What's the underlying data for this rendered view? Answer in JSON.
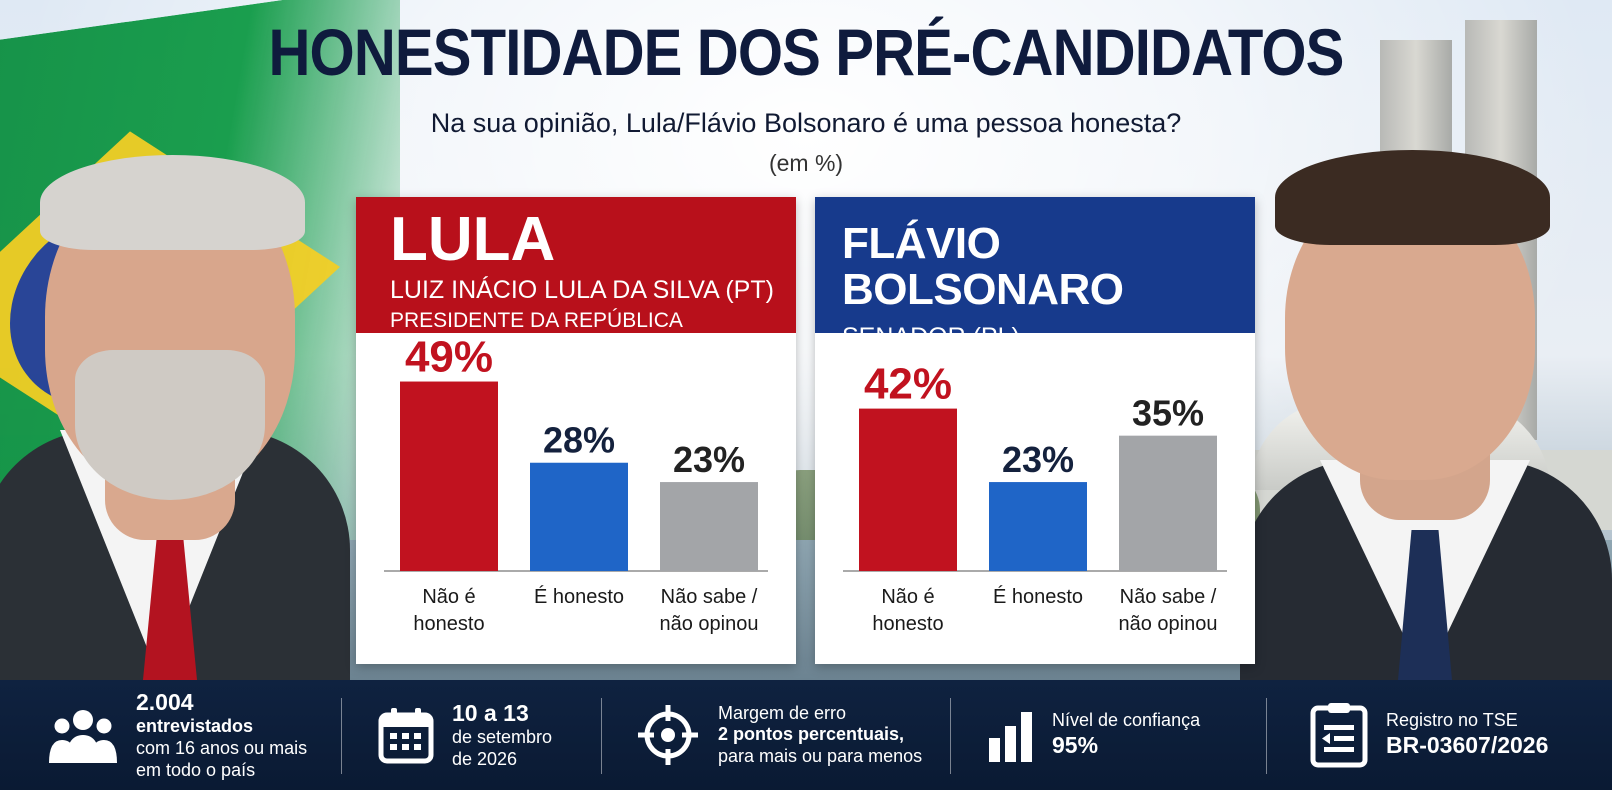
{
  "header": {
    "title": "HONESTIDADE DOS PRÉ-CANDIDATOS",
    "subtitle": "Na sua opinião, Lula/Flávio Bolsonaro é uma pessoa honesta?",
    "unit": "(em %)"
  },
  "candidates": [
    {
      "name": "LULA",
      "line1": "LUIZ INÁCIO LULA DA SILVA (PT)",
      "line2": "PRESIDENTE DA REPÚBLICA",
      "color": "#b8101b"
    },
    {
      "name": "FLÁVIO BOLSONARO",
      "line1": "SENADOR (PL)",
      "line2": "",
      "color": "#173a8c"
    }
  ],
  "chart_data": [
    {
      "type": "bar",
      "categories": [
        "Não é honesto",
        "É honesto",
        "Não sabe / não opinou"
      ],
      "category_lines": [
        [
          "Não é",
          "honesto"
        ],
        [
          "É honesto"
        ],
        [
          "Não sabe /",
          "não opinou"
        ]
      ],
      "values": [
        49,
        28,
        23
      ],
      "labels": [
        "49%",
        "28%",
        "23%"
      ],
      "colors": [
        "#c1121f",
        "#1f65c7",
        "#a3a5a8"
      ],
      "label_colors": [
        "#c1121f",
        "#14213d",
        "#222222"
      ],
      "ylim": [
        0,
        60
      ]
    },
    {
      "type": "bar",
      "categories": [
        "Não é honesto",
        "É honesto",
        "Não sabe / não opinou"
      ],
      "category_lines": [
        [
          "Não é",
          "honesto"
        ],
        [
          "É honesto"
        ],
        [
          "Não sabe /",
          "não opinou"
        ]
      ],
      "values": [
        42,
        23,
        35
      ],
      "labels": [
        "42%",
        "23%",
        "35%"
      ],
      "colors": [
        "#c1121f",
        "#1f65c7",
        "#a3a5a8"
      ],
      "label_colors": [
        "#c1121f",
        "#14213d",
        "#222222"
      ],
      "ylim": [
        0,
        60
      ]
    }
  ],
  "footer": {
    "sample": {
      "big": "2.004",
      "bold": "entrevistados",
      "line1": "com 16 anos ou mais",
      "line2": "em todo o país",
      "icon": "people-icon"
    },
    "dates": {
      "big": "10 a 13",
      "line1": "de setembro",
      "line2": "de 2026",
      "icon": "calendar-icon"
    },
    "margin": {
      "line1": "Margem de erro",
      "bold": "2 pontos percentuais,",
      "line2": "para mais ou para menos",
      "icon": "target-icon"
    },
    "confidence": {
      "line1": "Nível de confiança",
      "bold": "95%",
      "icon": "bar-chart-icon"
    },
    "registry": {
      "line1": "Registro no TSE",
      "bold": "BR-03607/2026",
      "icon": "document-icon"
    }
  }
}
